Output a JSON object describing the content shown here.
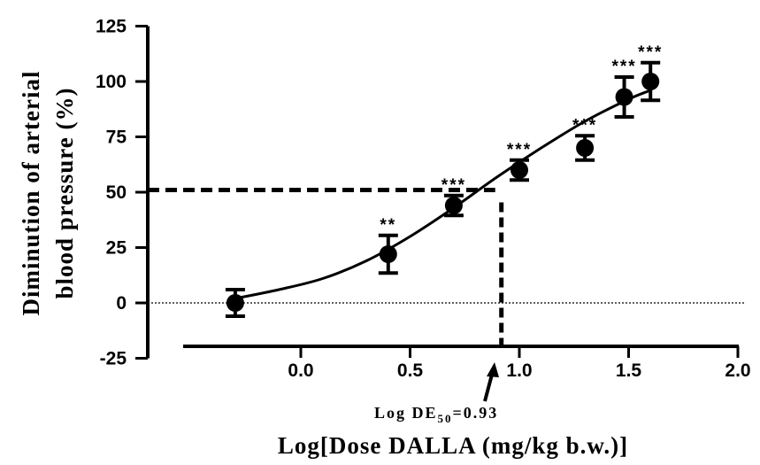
{
  "chart_data": {
    "type": "scatter",
    "xlabel": "Log[Dose DALLA (mg/kg b.w.)]",
    "ylabel_line1": "Diminution of arterial",
    "ylabel_line2": "blood pressure (%)",
    "xlim": [
      -0.3,
      2.0
    ],
    "ylim": [
      -25,
      125
    ],
    "x_ticks": [
      "0.0",
      "0.5",
      "1.0",
      "1.5",
      "2.0"
    ],
    "y_ticks": [
      "-25",
      "0",
      "25",
      "50",
      "75",
      "100",
      "125"
    ],
    "series": [
      {
        "points": [
          {
            "x": -0.3,
            "y": 0,
            "err": 6,
            "sig": ""
          },
          {
            "x": 0.4,
            "y": 22,
            "err": 8.5,
            "sig": "**"
          },
          {
            "x": 0.7,
            "y": 44,
            "err": 4.5,
            "sig": "***"
          },
          {
            "x": 1.0,
            "y": 60,
            "err": 4.5,
            "sig": "***"
          },
          {
            "x": 1.3,
            "y": 70,
            "err": 5.5,
            "sig": "***"
          },
          {
            "x": 1.48,
            "y": 93,
            "err": 9,
            "sig": "***"
          },
          {
            "x": 1.6,
            "y": 100,
            "err": 8.5,
            "sig": "***"
          }
        ]
      }
    ],
    "fit_curve": {
      "x": [
        -0.3,
        -0.1,
        0.1,
        0.3,
        0.5,
        0.7,
        0.9,
        1.1,
        1.3,
        1.5,
        1.6
      ],
      "y": [
        2,
        6,
        11,
        19,
        30,
        43,
        57,
        70,
        82,
        92,
        96
      ]
    },
    "ed50": {
      "x": 0.93,
      "y": 51
    },
    "annotation_prefix": "Log DE",
    "annotation_sub": "50",
    "annotation_value": "=0.93",
    "zero_line": true,
    "grid": false,
    "legend": "none"
  }
}
